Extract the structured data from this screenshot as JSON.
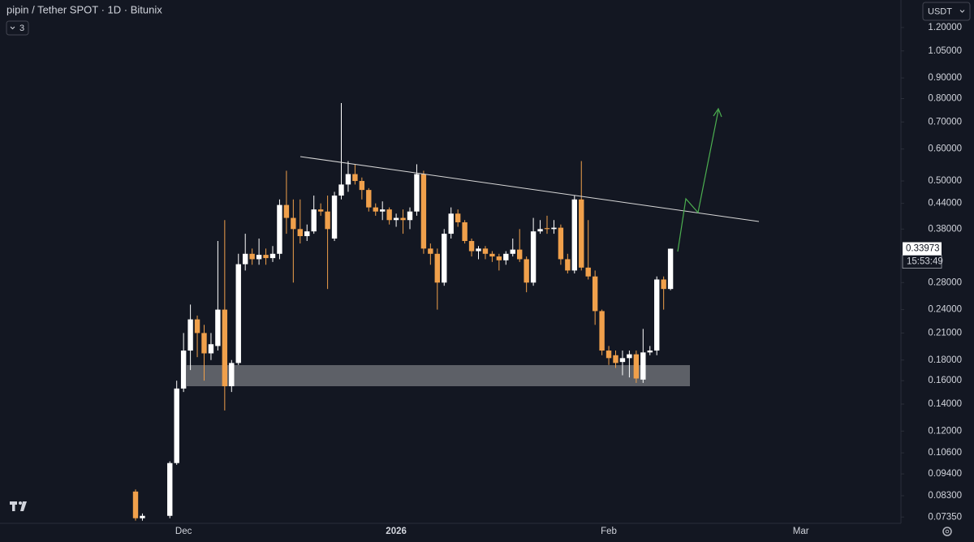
{
  "chart_data": {
    "type": "candlestick",
    "title": "pipin / Tether SPOT · 1D · Bitunix",
    "indicator_count": 3,
    "currency": "USDT",
    "log_scale": true,
    "up_color": "#ffffff",
    "down_color": "#f0a04b",
    "categories": [
      null,
      null,
      null,
      null,
      null,
      null,
      null,
      "Dec",
      null,
      null,
      null,
      null,
      null,
      null,
      null,
      null,
      null,
      null,
      null,
      null,
      null,
      null,
      null,
      null,
      null,
      null,
      null,
      null,
      null,
      null,
      null,
      null,
      null,
      null,
      null,
      null,
      null,
      null,
      "2026",
      null,
      null,
      null,
      null,
      null,
      null,
      null,
      null,
      null,
      null,
      null,
      null,
      null,
      null,
      null,
      null,
      null,
      null,
      null,
      null,
      null,
      null,
      null,
      null,
      null,
      null,
      null,
      null,
      null,
      null,
      "Feb",
      null,
      null,
      null,
      null,
      null,
      null,
      null,
      null,
      null,
      null,
      null,
      null,
      null,
      null,
      null,
      null,
      null,
      null,
      null,
      null,
      null,
      null,
      null,
      null,
      null,
      null,
      null,
      "Mar"
    ],
    "open": [
      0.085,
      0.073,
      null,
      null,
      null,
      0.074,
      0.1,
      0.153,
      0.19,
      0.227,
      0.21,
      0.187,
      0.195,
      0.24,
      0.155,
      0.177,
      0.311,
      0.33,
      0.32,
      0.328,
      0.322,
      0.33,
      0.436,
      0.405,
      0.38,
      0.365,
      0.375,
      0.425,
      0.42,
      0.36,
      0.46,
      0.49,
      0.52,
      0.5,
      0.475,
      0.43,
      0.42,
      0.425,
      0.4,
      0.405,
      0.4,
      0.42,
      0.52,
      0.34,
      0.33,
      0.28,
      0.37,
      0.415,
      0.395,
      0.355,
      0.335,
      0.34,
      0.33,
      0.325,
      0.318,
      0.33,
      0.338,
      0.32,
      0.28,
      0.375,
      0.382,
      0.38,
      0.383,
      0.32,
      0.3,
      0.45,
      0.305,
      0.29,
      0.238,
      0.19,
      0.185,
      0.178,
      0.182,
      0.186,
      0.161,
      0.188,
      0.19,
      0.285,
      0.27,
      null,
      null,
      null,
      null,
      null,
      null,
      null,
      null,
      null,
      null,
      null,
      null,
      null,
      null,
      null,
      null,
      null,
      null,
      null
    ],
    "high": [
      0.086,
      0.075,
      null,
      null,
      null,
      0.101,
      0.16,
      0.21,
      0.247,
      0.232,
      0.22,
      0.21,
      0.355,
      0.4,
      0.18,
      0.33,
      0.37,
      0.34,
      0.36,
      0.34,
      0.345,
      0.45,
      0.53,
      0.45,
      0.45,
      0.39,
      0.46,
      0.44,
      0.46,
      0.47,
      0.78,
      0.56,
      0.55,
      0.51,
      0.48,
      0.44,
      0.445,
      0.43,
      0.415,
      0.425,
      0.43,
      0.55,
      0.53,
      0.35,
      0.34,
      0.38,
      0.43,
      0.425,
      0.4,
      0.36,
      0.345,
      0.345,
      0.335,
      0.33,
      0.335,
      0.36,
      0.38,
      0.325,
      0.405,
      0.4,
      0.41,
      0.4,
      0.39,
      0.33,
      0.46,
      0.56,
      0.4,
      0.3,
      0.24,
      0.195,
      0.19,
      0.19,
      0.19,
      0.19,
      0.215,
      0.195,
      0.29,
      0.29,
      0.34,
      null,
      null,
      null,
      null,
      null,
      null,
      null,
      null,
      null,
      null,
      null,
      null,
      null,
      null,
      null,
      null,
      null,
      null,
      null
    ],
    "low": [
      0.072,
      0.072,
      null,
      null,
      null,
      0.073,
      0.099,
      0.15,
      0.17,
      0.183,
      0.16,
      0.18,
      0.19,
      0.135,
      0.15,
      0.175,
      0.3,
      0.31,
      0.31,
      0.31,
      0.315,
      0.32,
      0.37,
      0.28,
      0.35,
      0.355,
      0.37,
      0.41,
      0.27,
      0.355,
      0.45,
      0.47,
      0.49,
      0.45,
      0.42,
      0.41,
      0.4,
      0.39,
      0.385,
      0.37,
      0.38,
      0.41,
      0.33,
      0.31,
      0.24,
      0.275,
      0.36,
      0.385,
      0.35,
      0.325,
      0.32,
      0.32,
      0.315,
      0.3,
      0.31,
      0.325,
      0.315,
      0.265,
      0.275,
      0.37,
      0.37,
      0.37,
      0.31,
      0.295,
      0.295,
      0.3,
      0.285,
      0.22,
      0.185,
      0.175,
      0.172,
      0.165,
      0.163,
      0.158,
      0.158,
      0.185,
      0.185,
      0.24,
      0.268,
      null,
      null,
      null,
      null,
      null,
      null,
      null,
      null,
      null,
      null,
      null,
      null,
      null,
      null,
      null,
      null,
      null,
      null,
      null
    ],
    "close": [
      0.073,
      0.074,
      null,
      null,
      null,
      0.1,
      0.153,
      0.19,
      0.227,
      0.21,
      0.187,
      0.197,
      0.24,
      0.155,
      0.177,
      0.311,
      0.33,
      0.32,
      0.328,
      0.322,
      0.33,
      0.436,
      0.405,
      0.38,
      0.365,
      0.375,
      0.425,
      0.42,
      0.38,
      0.46,
      0.49,
      0.52,
      0.5,
      0.475,
      0.43,
      0.42,
      0.425,
      0.4,
      0.405,
      0.4,
      0.42,
      0.52,
      0.34,
      0.33,
      0.28,
      0.37,
      0.415,
      0.395,
      0.355,
      0.335,
      0.34,
      0.33,
      0.325,
      0.318,
      0.33,
      0.338,
      0.32,
      0.28,
      0.375,
      0.38,
      0.38,
      0.383,
      0.32,
      0.3,
      0.45,
      0.305,
      0.29,
      0.238,
      0.19,
      0.182,
      0.177,
      0.182,
      0.186,
      0.162,
      0.188,
      0.19,
      0.285,
      0.27,
      0.33973,
      null,
      null,
      null,
      null,
      null,
      null,
      null,
      null,
      null,
      null,
      null,
      null,
      null,
      null,
      null,
      null,
      null,
      null,
      null
    ],
    "last_price": 0.33973,
    "countdown": "15:53:49",
    "ylim": [
      0.0709,
      1.404
    ],
    "yticks": [
      {
        "value": 1.2,
        "label": "1.20000"
      },
      {
        "value": 1.05,
        "label": "1.05000"
      },
      {
        "value": 0.9,
        "label": "0.90000"
      },
      {
        "value": 0.8,
        "label": "0.80000"
      },
      {
        "value": 0.7,
        "label": "0.70000"
      },
      {
        "value": 0.6,
        "label": "0.60000"
      },
      {
        "value": 0.5,
        "label": "0.50000"
      },
      {
        "value": 0.44,
        "label": "0.44000"
      },
      {
        "value": 0.38,
        "label": "0.38000"
      },
      {
        "value": 0.28,
        "label": "0.28000"
      },
      {
        "value": 0.24,
        "label": "0.24000"
      },
      {
        "value": 0.21,
        "label": "0.21000"
      },
      {
        "value": 0.18,
        "label": "0.18000"
      },
      {
        "value": 0.16,
        "label": "0.16000"
      },
      {
        "value": 0.14,
        "label": "0.14000"
      },
      {
        "value": 0.12,
        "label": "0.12000"
      },
      {
        "value": 0.106,
        "label": "0.10600"
      },
      {
        "value": 0.094,
        "label": "0.09400"
      },
      {
        "value": 0.083,
        "label": "0.08300"
      },
      {
        "value": 0.0735,
        "label": "0.07350"
      }
    ]
  }
}
